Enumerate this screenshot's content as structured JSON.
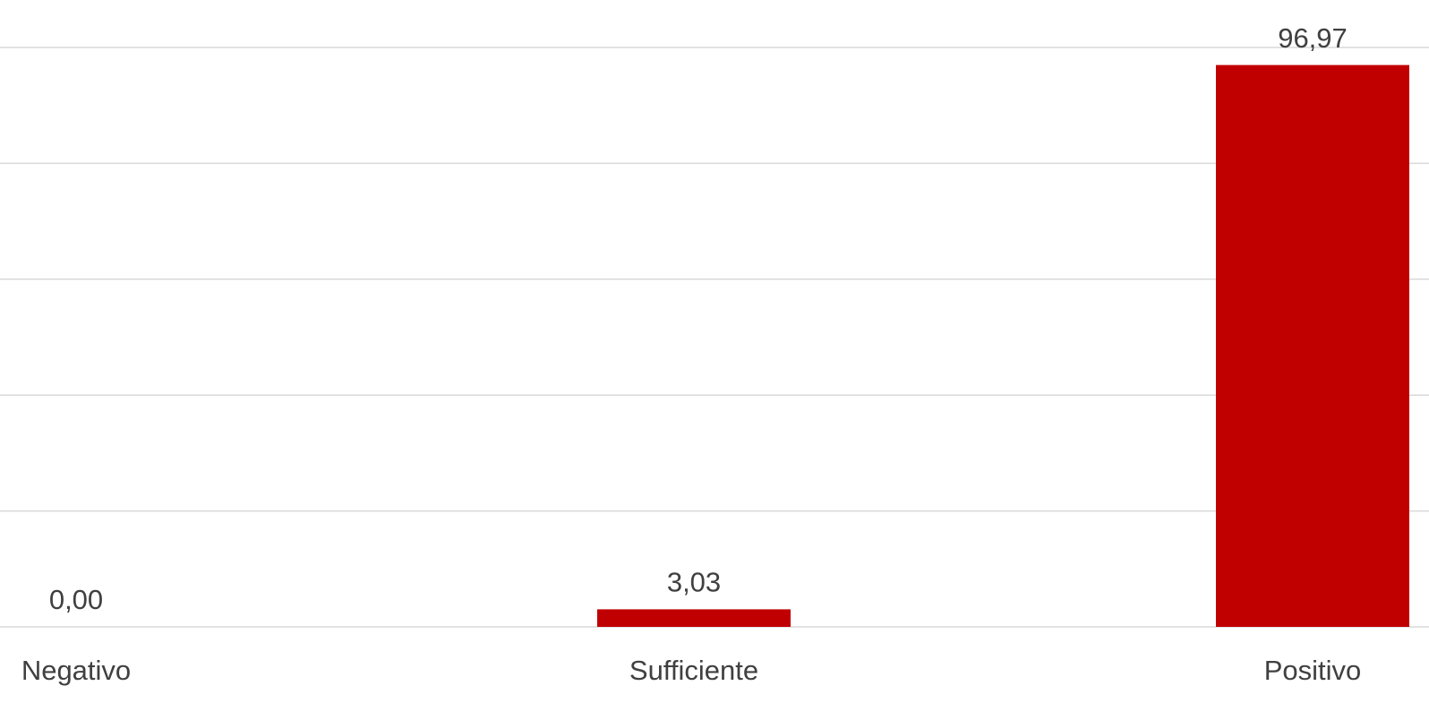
{
  "chart_data": {
    "type": "bar",
    "categories": [
      "Negativo",
      "Sufficiente",
      "Positivo"
    ],
    "values": [
      0.0,
      3.03,
      96.97
    ],
    "value_labels": [
      "0,00",
      "3,03",
      "96,97"
    ],
    "ylim": [
      0,
      100
    ],
    "y_grid_step": 20,
    "grid": true,
    "bar_color": "#c00000",
    "title": "",
    "xlabel": "",
    "ylabel": ""
  }
}
